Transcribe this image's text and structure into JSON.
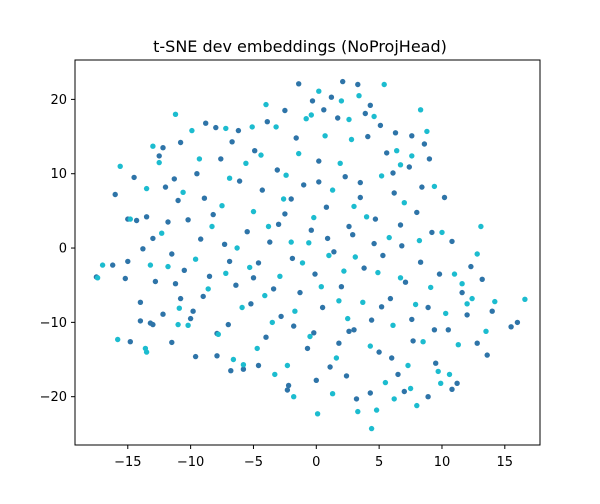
{
  "chart_data": {
    "type": "scatter",
    "title": "t-SNE dev embeddings (NoProjHead)",
    "xlabel": "",
    "ylabel": "",
    "xlim": [
      -19.2,
      17.8
    ],
    "ylim": [
      -26.5,
      25.3
    ],
    "xticks": [
      -15,
      -10,
      -5,
      0,
      5,
      10,
      15
    ],
    "yticks": [
      -20,
      -10,
      0,
      10,
      20
    ],
    "xtick_labels": [
      "−15",
      "−10",
      "−5",
      "0",
      "5",
      "10",
      "15"
    ],
    "ytick_labels": [
      "−20",
      "−10",
      "0",
      "10",
      "20"
    ],
    "grid": false,
    "legend": "none",
    "series": [
      {
        "color": "#2e74a8",
        "points": [
          [
            -17.5,
            -3.9
          ],
          [
            -16.0,
            7.2
          ],
          [
            -15.2,
            -4.1
          ],
          [
            -15.0,
            -1.8
          ],
          [
            -14.8,
            -12.6
          ],
          [
            -14.5,
            9.5
          ],
          [
            -14.3,
            3.7
          ],
          [
            -14.0,
            -7.3
          ],
          [
            -13.8,
            -0.1
          ],
          [
            -13.5,
            4.2
          ],
          [
            -13.2,
            -10.1
          ],
          [
            -13.0,
            1.3
          ],
          [
            -12.8,
            -4.5
          ],
          [
            -12.5,
            12.4
          ],
          [
            -12.2,
            -8.9
          ],
          [
            -12.0,
            8.2
          ],
          [
            -11.8,
            3.5
          ],
          [
            -11.5,
            -0.8
          ],
          [
            -11.2,
            -4.8
          ],
          [
            -11.0,
            6.4
          ],
          [
            -10.8,
            -6.8
          ],
          [
            -10.5,
            -3.0
          ],
          [
            -10.2,
            3.8
          ],
          [
            -9.8,
            -8.5
          ],
          [
            -9.5,
            10.0
          ],
          [
            -9.2,
            1.2
          ],
          [
            -9.0,
            -6.5
          ],
          [
            -8.8,
            16.8
          ],
          [
            -8.5,
            -3.8
          ],
          [
            -8.2,
            4.5
          ],
          [
            -7.9,
            -14.5
          ],
          [
            -7.6,
            12.0
          ],
          [
            -7.3,
            0.5
          ],
          [
            -7.0,
            -10.3
          ],
          [
            -6.7,
            14.3
          ],
          [
            -6.4,
            -5.0
          ],
          [
            -6.1,
            9.0
          ],
          [
            -5.8,
            -16.3
          ],
          [
            -5.5,
            2.2
          ],
          [
            -5.2,
            -7.5
          ],
          [
            -4.9,
            13.1
          ],
          [
            -4.6,
            -2.0
          ],
          [
            -4.3,
            7.8
          ],
          [
            -4.0,
            -12.0
          ],
          [
            -3.7,
            0.8
          ],
          [
            -3.4,
            -5.5
          ],
          [
            -3.1,
            10.5
          ],
          [
            -2.8,
            -9.2
          ],
          [
            -2.5,
            4.6
          ],
          [
            -2.2,
            -18.5
          ],
          [
            -1.9,
            -1.4
          ],
          [
            -1.6,
            14.8
          ],
          [
            -1.3,
            -6.0
          ],
          [
            -1.0,
            8.5
          ],
          [
            -0.7,
            -13.5
          ],
          [
            -0.4,
            2.4
          ],
          [
            -0.1,
            -3.5
          ],
          [
            0.2,
            11.7
          ],
          [
            0.5,
            -8.0
          ],
          [
            0.8,
            5.5
          ],
          [
            1.1,
            -16.0
          ],
          [
            1.4,
            -0.5
          ],
          [
            1.7,
            17.5
          ],
          [
            2.0,
            -5.2
          ],
          [
            2.3,
            9.6
          ],
          [
            2.6,
            -11.2
          ],
          [
            2.9,
            1.8
          ],
          [
            3.2,
            -20.3
          ],
          [
            3.5,
            6.8
          ],
          [
            3.8,
            -2.7
          ],
          [
            4.1,
            15.0
          ],
          [
            4.4,
            -9.7
          ],
          [
            4.7,
            3.9
          ],
          [
            5.0,
            -14.0
          ],
          [
            5.3,
            -1.0
          ],
          [
            5.6,
            12.8
          ],
          [
            5.9,
            -6.8
          ],
          [
            6.2,
            7.4
          ],
          [
            6.5,
            -17.0
          ],
          [
            6.8,
            0.3
          ],
          [
            7.1,
            -4.6
          ],
          [
            7.4,
            10.9
          ],
          [
            7.7,
            -12.5
          ],
          [
            8.0,
            4.8
          ],
          [
            8.3,
            -1.9
          ],
          [
            8.6,
            14.0
          ],
          [
            8.9,
            -8.0
          ],
          [
            9.2,
            2.1
          ],
          [
            9.5,
            -15.5
          ],
          [
            9.8,
            -3.5
          ],
          [
            10.2,
            6.8
          ],
          [
            10.5,
            -11.0
          ],
          [
            10.8,
            0.9
          ],
          [
            11.2,
            -18.2
          ],
          [
            11.6,
            -6.0
          ],
          [
            12.0,
            -9.0
          ],
          [
            12.3,
            -2.5
          ],
          [
            12.8,
            -12.8
          ],
          [
            13.2,
            -4.2
          ],
          [
            13.6,
            -14.4
          ],
          [
            14.0,
            -8.5
          ],
          [
            15.5,
            -10.6
          ],
          [
            16.0,
            -10.0
          ],
          [
            3.3,
            22.0
          ],
          [
            1.2,
            20.3
          ],
          [
            -0.3,
            19.8
          ],
          [
            2.1,
            22.4
          ],
          [
            4.3,
            19.2
          ],
          [
            -1.4,
            22.1
          ],
          [
            0.6,
            18.6
          ],
          [
            3.9,
            18.1
          ],
          [
            -2.5,
            18.5
          ],
          [
            5.1,
            16.5
          ],
          [
            -3.9,
            17.0
          ],
          [
            6.3,
            15.5
          ],
          [
            7.6,
            15.1
          ],
          [
            -8.0,
            16.2
          ],
          [
            -10.8,
            14.2
          ],
          [
            -12.2,
            13.5
          ],
          [
            -6.2,
            15.8
          ],
          [
            9.0,
            12.0
          ],
          [
            8.4,
            8.2
          ],
          [
            -15.0,
            3.9
          ],
          [
            -16.2,
            -2.3
          ],
          [
            -11.5,
            -12.7
          ],
          [
            -9.6,
            -14.6
          ],
          [
            -6.8,
            -16.5
          ],
          [
            -2.3,
            -19.1
          ],
          [
            0.0,
            -17.8
          ],
          [
            2.4,
            -17.2
          ],
          [
            4.3,
            -19.5
          ],
          [
            7.0,
            -19.3
          ],
          [
            8.9,
            -20.0
          ],
          [
            10.8,
            -19.0
          ],
          [
            -4.6,
            -15.8
          ],
          [
            6.0,
            -14.8
          ],
          [
            -13.0,
            -10.3
          ],
          [
            -14.0,
            -9.8
          ],
          [
            -10.0,
            -9.5
          ],
          [
            -7.9,
            -11.5
          ],
          [
            1.8,
            -12.8
          ],
          [
            3.0,
            -11.0
          ],
          [
            5.2,
            -7.9
          ],
          [
            -1.8,
            -10.5
          ],
          [
            -0.2,
            -11.4
          ],
          [
            7.6,
            -9.6
          ],
          [
            9.4,
            -11.0
          ],
          [
            -5.0,
            -4.0
          ],
          [
            -6.9,
            -1.8
          ],
          [
            -3.0,
            3.2
          ],
          [
            0.9,
            1.3
          ],
          [
            2.6,
            2.9
          ],
          [
            4.6,
            0.6
          ],
          [
            6.7,
            3.1
          ],
          [
            -2.0,
            6.6
          ],
          [
            0.2,
            8.9
          ],
          [
            3.5,
            8.8
          ],
          [
            6.1,
            10.1
          ],
          [
            -8.9,
            6.7
          ],
          [
            -11.3,
            9.3
          ]
        ]
      },
      {
        "color": "#1cbccf",
        "points": [
          [
            -17.4,
            -4.0
          ],
          [
            -17.0,
            -2.3
          ],
          [
            -15.8,
            -12.3
          ],
          [
            -15.6,
            11.0
          ],
          [
            -14.8,
            3.9
          ],
          [
            -13.6,
            -13.5
          ],
          [
            -13.2,
            -2.3
          ],
          [
            -13.5,
            8.0
          ],
          [
            -12.5,
            11.5
          ],
          [
            -12.3,
            2.0
          ],
          [
            -11.8,
            -2.5
          ],
          [
            -11.2,
            18.0
          ],
          [
            -11.0,
            -10.3
          ],
          [
            -10.6,
            7.5
          ],
          [
            -10.2,
            -10.4
          ],
          [
            -9.9,
            15.8
          ],
          [
            -9.6,
            -1.5
          ],
          [
            -9.3,
            12.0
          ],
          [
            -8.6,
            -5.5
          ],
          [
            -8.3,
            2.9
          ],
          [
            -7.8,
            -11.6
          ],
          [
            -7.5,
            5.7
          ],
          [
            -7.2,
            -3.4
          ],
          [
            -6.9,
            9.4
          ],
          [
            -6.6,
            -15.0
          ],
          [
            -6.3,
            0.0
          ],
          [
            -5.9,
            -8.0
          ],
          [
            -5.6,
            11.4
          ],
          [
            -5.3,
            -2.6
          ],
          [
            -5.0,
            4.9
          ],
          [
            -4.7,
            -13.5
          ],
          [
            -4.4,
            12.5
          ],
          [
            -4.1,
            -6.4
          ],
          [
            -3.8,
            2.9
          ],
          [
            -3.5,
            -10.0
          ],
          [
            -3.2,
            16.3
          ],
          [
            -2.9,
            -3.8
          ],
          [
            -2.6,
            6.6
          ],
          [
            -2.3,
            -15.8
          ],
          [
            -2.0,
            0.8
          ],
          [
            -1.7,
            -8.5
          ],
          [
            -1.4,
            12.7
          ],
          [
            -1.1,
            -2.0
          ],
          [
            -0.8,
            17.4
          ],
          [
            -0.5,
            -11.9
          ],
          [
            -0.2,
            4.1
          ],
          [
            0.1,
            -22.3
          ],
          [
            0.4,
            -5.2
          ],
          [
            0.7,
            15.1
          ],
          [
            1.0,
            -1.0
          ],
          [
            1.3,
            7.8
          ],
          [
            1.6,
            -14.8
          ],
          [
            1.9,
            11.4
          ],
          [
            2.2,
            -3.1
          ],
          [
            2.5,
            -9.5
          ],
          [
            2.8,
            14.6
          ],
          [
            3.1,
            -1.2
          ],
          [
            3.4,
            20.5
          ],
          [
            3.7,
            -7.3
          ],
          [
            4.0,
            4.2
          ],
          [
            4.3,
            -13.2
          ],
          [
            4.6,
            17.7
          ],
          [
            4.9,
            -3.3
          ],
          [
            5.2,
            9.7
          ],
          [
            5.5,
            -18.1
          ],
          [
            5.8,
            1.4
          ],
          [
            6.1,
            -10.4
          ],
          [
            6.4,
            13.1
          ],
          [
            6.7,
            -4.0
          ],
          [
            7.0,
            6.1
          ],
          [
            7.3,
            -15.8
          ],
          [
            7.6,
            12.4
          ],
          [
            7.9,
            -7.6
          ],
          [
            8.2,
            1.0
          ],
          [
            8.5,
            -12.6
          ],
          [
            8.8,
            15.7
          ],
          [
            9.1,
            -5.3
          ],
          [
            9.4,
            8.3
          ],
          [
            9.7,
            -16.6
          ],
          [
            10.0,
            2.1
          ],
          [
            10.3,
            -8.8
          ],
          [
            10.6,
            -17.0
          ],
          [
            11.0,
            -3.5
          ],
          [
            11.3,
            -13.0
          ],
          [
            11.6,
            -4.8
          ],
          [
            12.0,
            -7.5
          ],
          [
            12.4,
            -6.8
          ],
          [
            12.8,
            -0.8
          ],
          [
            13.1,
            2.9
          ],
          [
            13.5,
            -11.2
          ],
          [
            14.2,
            -7.2
          ],
          [
            16.6,
            -6.9
          ],
          [
            4.4,
            -24.3
          ],
          [
            3.3,
            -22.0
          ],
          [
            4.8,
            -21.8
          ],
          [
            6.2,
            -20.3
          ],
          [
            7.5,
            -18.9
          ],
          [
            8.0,
            -21.2
          ],
          [
            9.9,
            -18.2
          ],
          [
            -3.3,
            -17.0
          ],
          [
            -5.8,
            -15.7
          ],
          [
            1.3,
            -19.6
          ],
          [
            -1.8,
            -20.0
          ],
          [
            -13.5,
            -14.0
          ],
          [
            -10.9,
            -8.1
          ],
          [
            2.0,
            19.8
          ],
          [
            0.2,
            21.1
          ],
          [
            -0.4,
            17.9
          ],
          [
            5.4,
            22.0
          ],
          [
            2.6,
            17.3
          ],
          [
            -4.0,
            19.3
          ],
          [
            -5.1,
            16.3
          ],
          [
            8.3,
            18.6
          ],
          [
            -13.0,
            13.7
          ],
          [
            -7.2,
            16.1
          ],
          [
            6.7,
            11.2
          ],
          [
            -2.4,
            9.8
          ],
          [
            3.0,
            5.6
          ],
          [
            -0.6,
            0.7
          ],
          [
            1.8,
            -7.1
          ]
        ]
      }
    ]
  }
}
